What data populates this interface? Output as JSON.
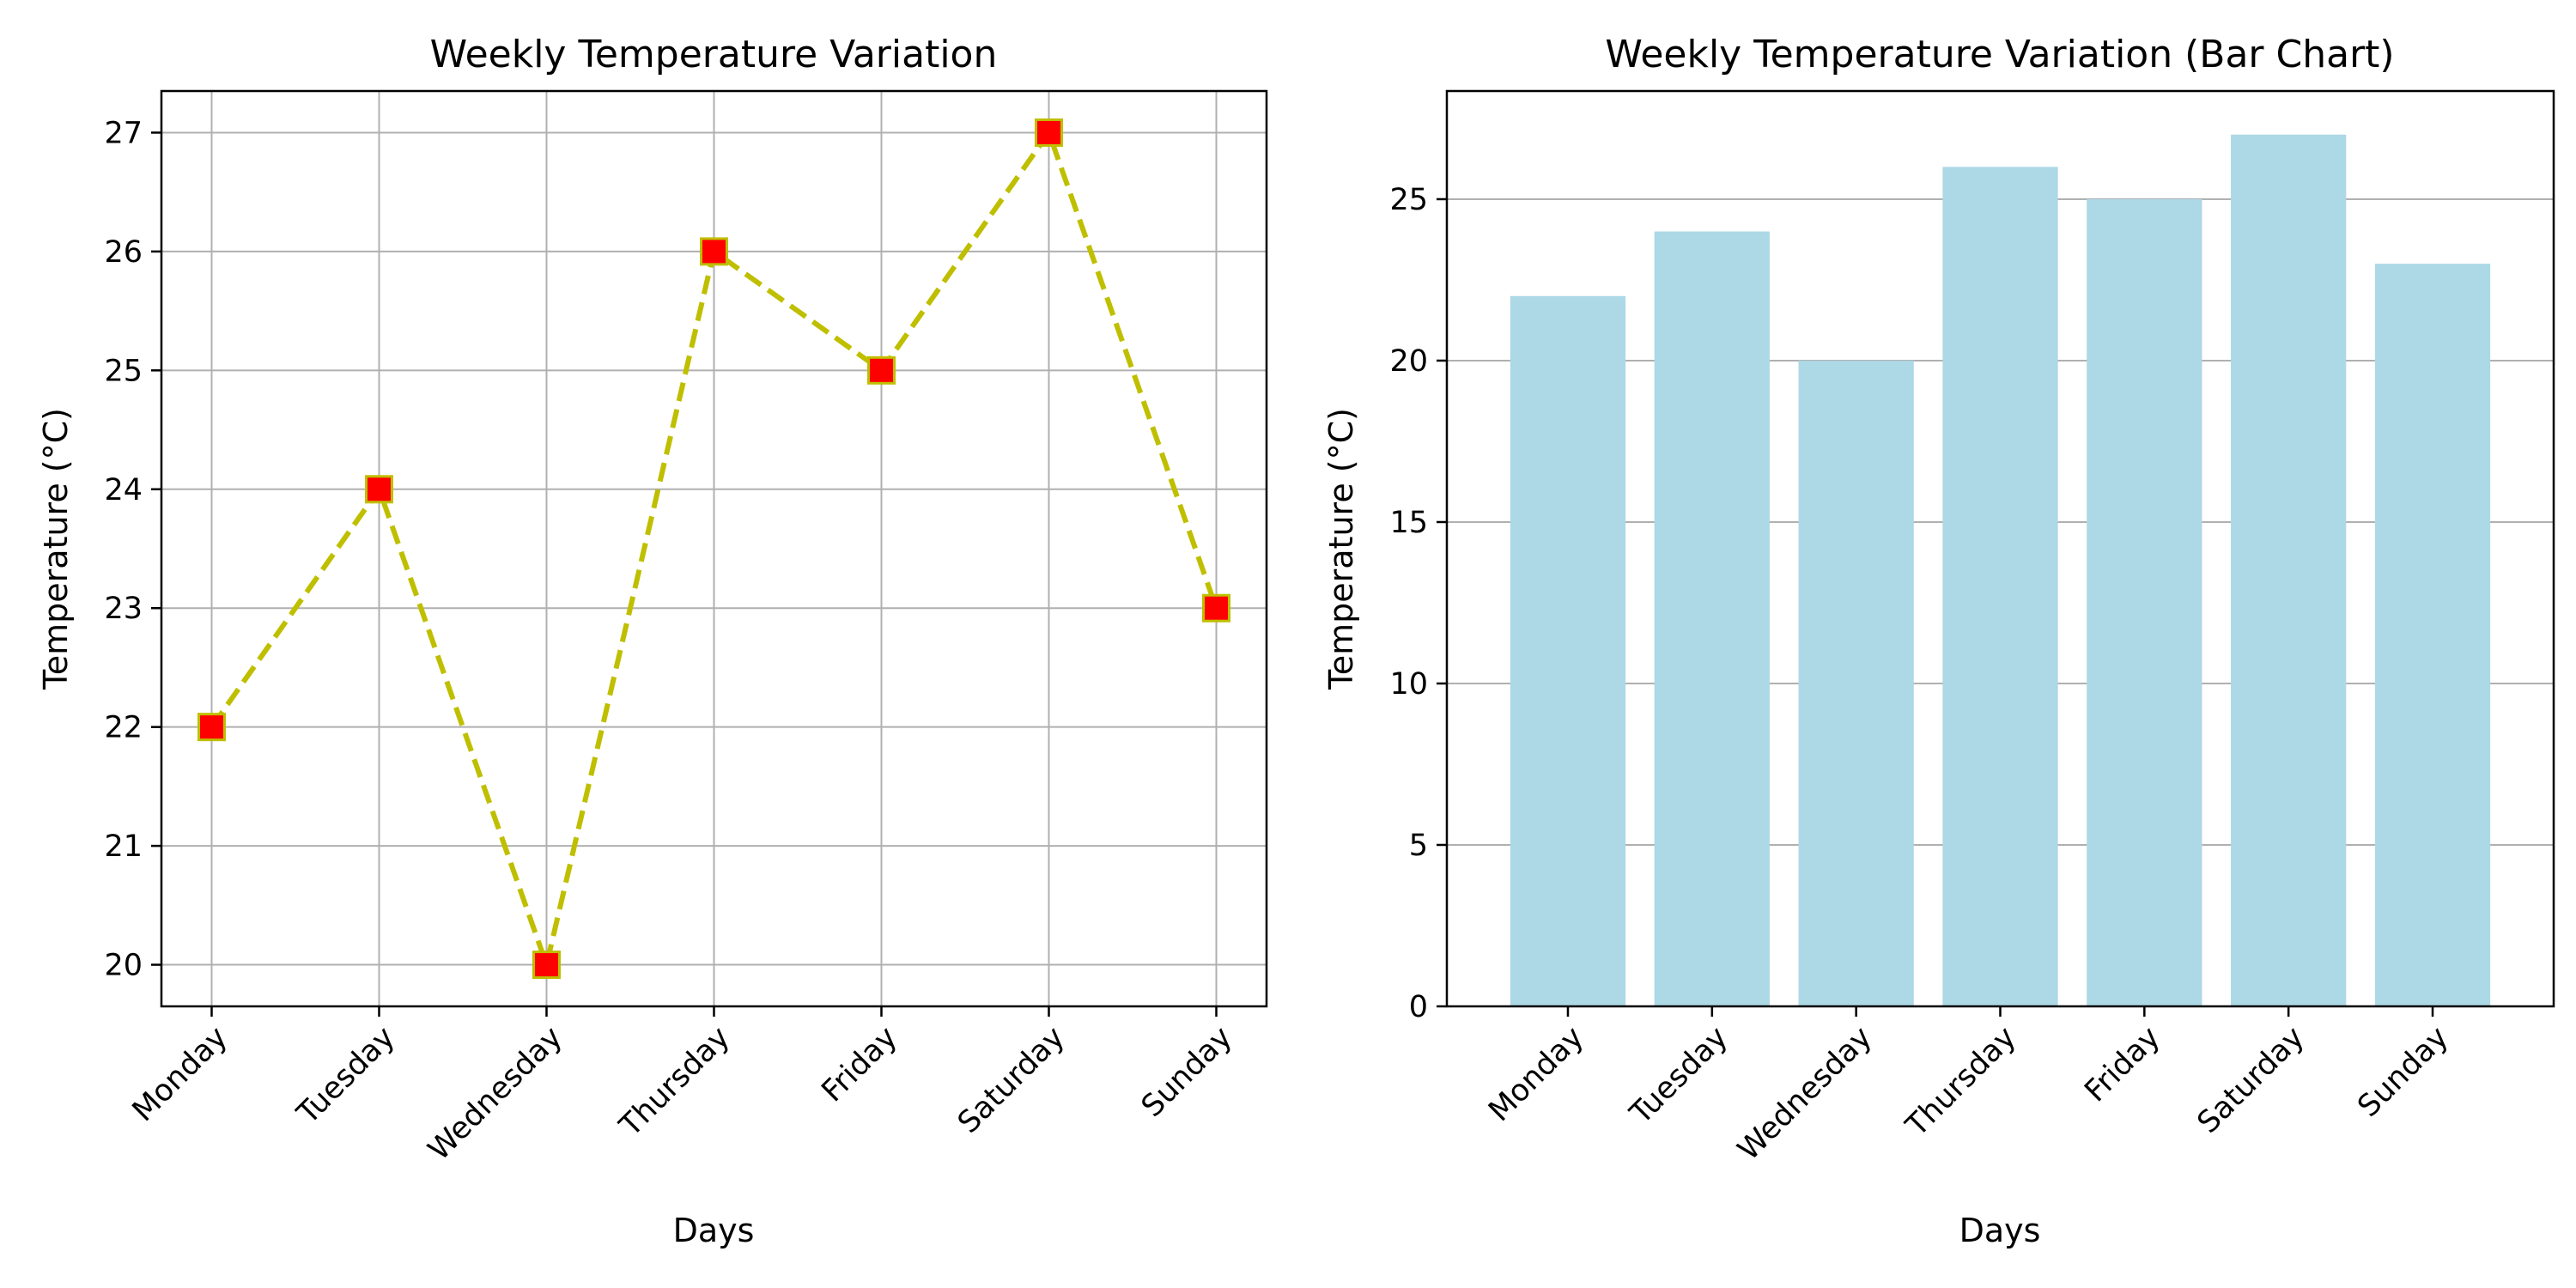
{
  "chart_data": [
    {
      "type": "line",
      "title": "Weekly Temperature Variation",
      "xlabel": "Days",
      "ylabel": "Temperature (°C)",
      "categories": [
        "Monday",
        "Tuesday",
        "Wednesday",
        "Thursday",
        "Friday",
        "Saturday",
        "Sunday"
      ],
      "values": [
        22,
        24,
        20,
        26,
        25,
        27,
        23
      ],
      "ylim": [
        19.65,
        27.35
      ],
      "yticks": [
        20,
        21,
        22,
        23,
        24,
        25,
        26,
        27
      ],
      "grid": "both",
      "line_color": "#bfbf00",
      "line_style": "dashed",
      "marker": "square",
      "marker_color": "#ff0000",
      "marker_edge_color": "#bfbf00"
    },
    {
      "type": "bar",
      "title": "Weekly Temperature Variation (Bar Chart)",
      "xlabel": "Days",
      "ylabel": "Temperature (°C)",
      "categories": [
        "Monday",
        "Tuesday",
        "Wednesday",
        "Thursday",
        "Friday",
        "Saturday",
        "Sunday"
      ],
      "values": [
        22,
        24,
        20,
        26,
        25,
        27,
        23
      ],
      "ylim": [
        0,
        28.35
      ],
      "yticks": [
        0,
        5,
        10,
        15,
        20,
        25
      ],
      "grid": "y",
      "bar_color": "#add8e6"
    }
  ]
}
